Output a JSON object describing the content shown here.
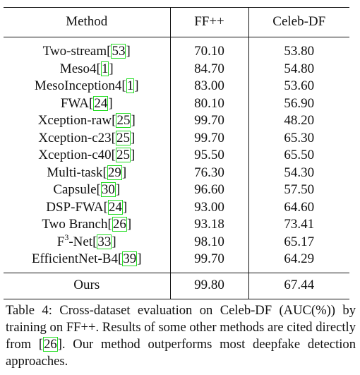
{
  "table": {
    "headers": [
      "Method",
      "FF++",
      "Celeb-DF"
    ],
    "rows": [
      {
        "method": "Two-stream",
        "cite": "53",
        "ff": "70.10",
        "celeb": "53.80"
      },
      {
        "method": "Meso4",
        "cite": "1",
        "ff": "84.70",
        "celeb": "54.80"
      },
      {
        "method": "MesoInception4",
        "cite": "1",
        "ff": "83.00",
        "celeb": "53.60"
      },
      {
        "method": "FWA",
        "cite": "24",
        "ff": "80.10",
        "celeb": "56.90"
      },
      {
        "method": "Xception-raw",
        "cite": "25",
        "ff": "99.70",
        "celeb": "48.20"
      },
      {
        "method": "Xception-c23",
        "cite": "25",
        "ff": "99.70",
        "celeb": "65.30"
      },
      {
        "method": "Xception-c40",
        "cite": "25",
        "ff": "95.50",
        "celeb": "65.50"
      },
      {
        "method": "Multi-task",
        "cite": "29",
        "ff": "76.30",
        "celeb": "54.30"
      },
      {
        "method": "Capsule",
        "cite": "30",
        "ff": "96.60",
        "celeb": "57.50"
      },
      {
        "method": "DSP-FWA",
        "cite": "24",
        "ff": "93.00",
        "celeb": "64.60"
      },
      {
        "method": "Two Branch",
        "cite": "26",
        "ff": "93.18",
        "celeb": "73.41"
      },
      {
        "method": "F",
        "sup": "3",
        "method_suffix": "-Net",
        "cite": "33",
        "ff": "98.10",
        "celeb": "65.17"
      },
      {
        "method": "EfficientNet-B4",
        "cite": "39",
        "ff": "99.70",
        "celeb": "64.29"
      }
    ],
    "ours": {
      "method": "Ours",
      "ff": "99.80",
      "celeb": "67.44"
    }
  },
  "caption": {
    "part1": "Table 4: Cross-dataset evaluation on Celeb-DF (AUC(%)) by training on FF++. Results of some other methods are cited directly from ",
    "cite": "26",
    "part2": ". Our method outperforms most deepfake detection approaches."
  },
  "colors": {
    "citation_box": "#22dd22",
    "text": "#111111"
  }
}
